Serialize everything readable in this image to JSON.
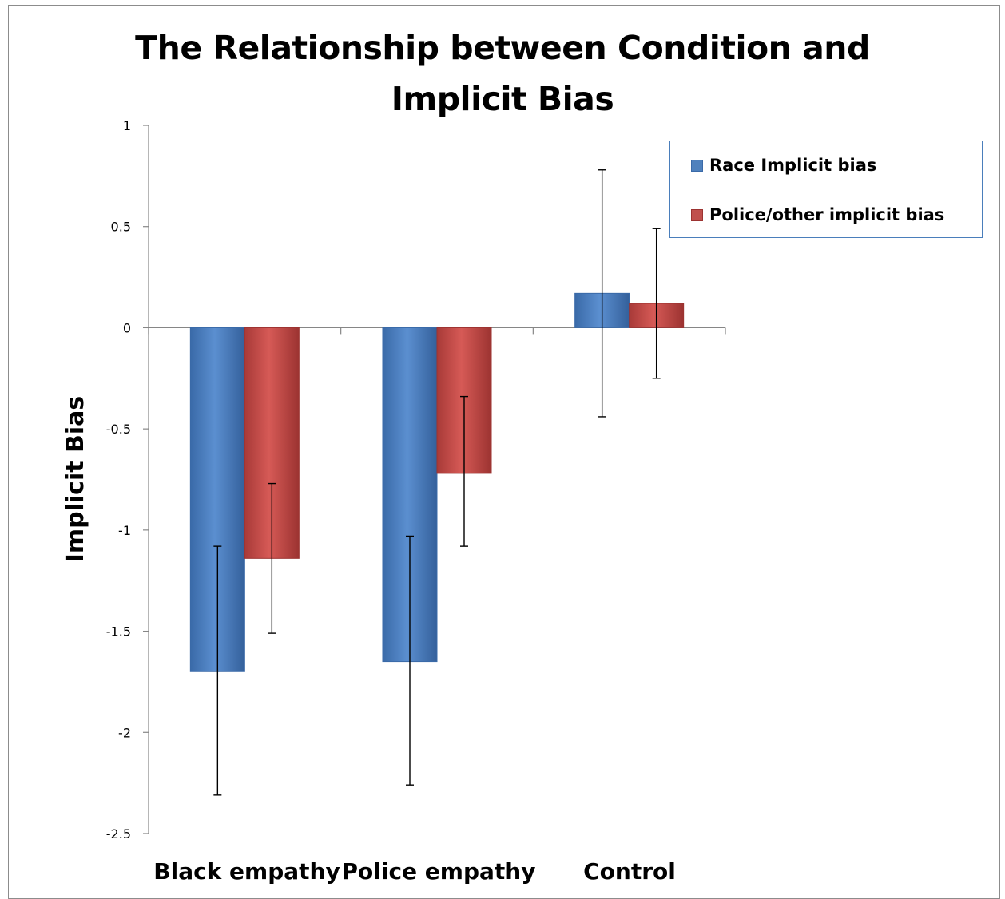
{
  "chart_data": {
    "type": "bar",
    "title": [
      "The Relationship between Condition  and",
      "Implicit Bias"
    ],
    "xlabel": "",
    "ylabel": "Implicit Bias",
    "ylim": [
      -2.5,
      1
    ],
    "yticks": [
      "1",
      "0.5",
      "0",
      "-0.5",
      "-1",
      "-1.5",
      "-2",
      "-2.5"
    ],
    "ytick_values": [
      1,
      0.5,
      0,
      -0.5,
      -1,
      -1.5,
      -2,
      -2.5
    ],
    "categories": [
      "Black empathy",
      "Police empathy",
      "Control"
    ],
    "series": [
      {
        "name": "Race Implicit bias",
        "color": "#4f81bd",
        "values": [
          -1.7,
          -1.65,
          0.17
        ],
        "error_low": [
          -2.31,
          -2.26,
          -0.44
        ],
        "error_high": [
          -1.08,
          -1.03,
          0.78
        ]
      },
      {
        "name": "Police/other implicit bias",
        "color": "#c0504d",
        "values": [
          -1.14,
          -0.72,
          0.12
        ],
        "error_low": [
          -1.51,
          -1.08,
          -0.25
        ],
        "error_high": [
          -0.77,
          -0.34,
          0.49
        ]
      }
    ],
    "grid": false,
    "legend_position": "top-right",
    "error_bars": true
  }
}
